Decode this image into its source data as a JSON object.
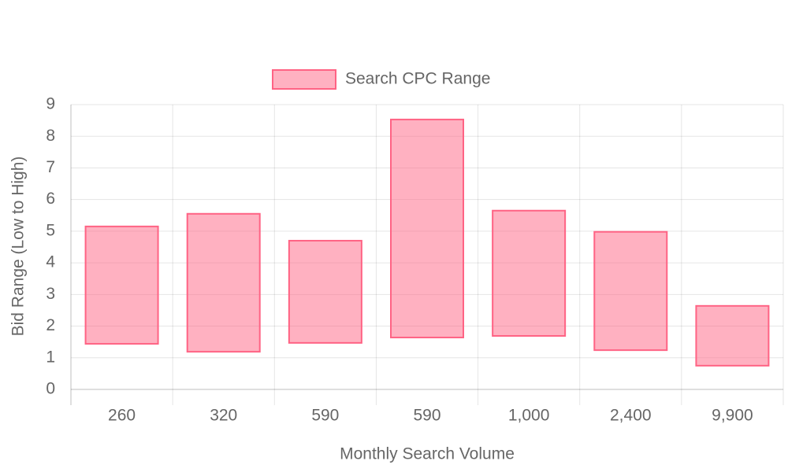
{
  "chart_data": {
    "type": "bar",
    "floating": true,
    "x_label": "Monthly Search Volume",
    "y_label": "Bid Range (Low to High)",
    "categories": [
      "260",
      "320",
      "590",
      "590",
      "1,000",
      "2,400",
      "9,900"
    ],
    "series": [
      {
        "name": "Search CPC Range",
        "color": "#ff6384",
        "values": [
          [
            1.44,
            5.15
          ],
          [
            1.19,
            5.55
          ],
          [
            1.47,
            4.7
          ],
          [
            1.64,
            8.53
          ],
          [
            1.69,
            5.65
          ],
          [
            1.24,
            4.98
          ],
          [
            0.75,
            2.64
          ]
        ]
      }
    ],
    "ylim": [
      0,
      9
    ],
    "yticks": [
      0,
      1,
      2,
      3,
      4,
      5,
      6,
      7,
      8,
      9
    ],
    "grid": true,
    "legend": "top"
  }
}
